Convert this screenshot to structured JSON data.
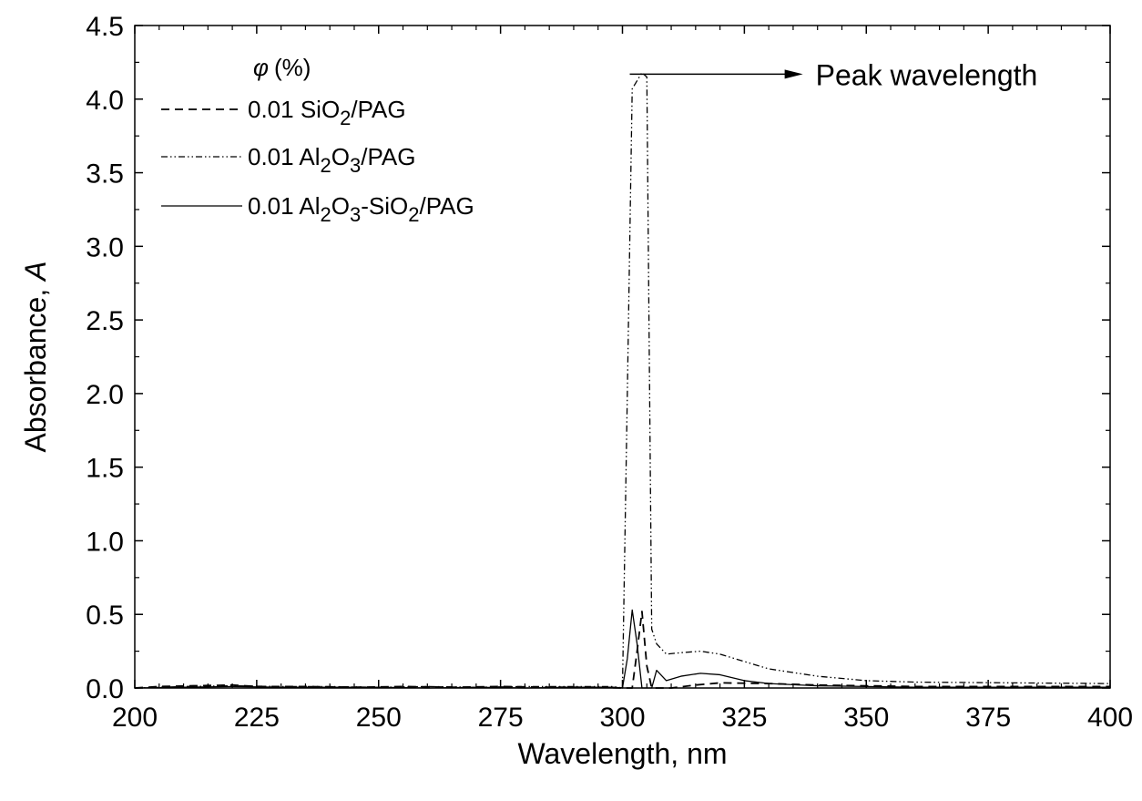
{
  "chart_data": {
    "type": "line",
    "xlabel": "Wavelength, nm",
    "ylabel_text": "Absorbance, ",
    "ylabel_var": "A",
    "xlim": [
      200,
      400
    ],
    "ylim": [
      0,
      4.5
    ],
    "x_ticks": [
      200,
      225,
      250,
      275,
      300,
      325,
      350,
      375,
      400
    ],
    "x_tick_labels": [
      "200",
      "225",
      "250",
      "275",
      "300",
      "325",
      "350",
      "375",
      "400"
    ],
    "y_ticks": [
      0,
      0.5,
      1,
      1.5,
      2,
      2.5,
      3,
      3.5,
      4,
      4.5
    ],
    "y_tick_labels": [
      "0.0",
      "0.5",
      "1.0",
      "1.5",
      "2.0",
      "2.5",
      "3.0",
      "3.5",
      "4.0",
      "4.5"
    ],
    "grid": false,
    "legend": {
      "title_symbol": "φ",
      "title_unit": "(%)",
      "placement": "top-left"
    },
    "series": [
      {
        "name_parts": [
          "0.01 SiO",
          "2",
          "/PAG"
        ],
        "style": "dashed",
        "x": [
          200,
          205,
          212,
          220,
          225,
          235,
          245,
          255,
          265,
          275,
          285,
          295,
          300,
          302,
          303,
          304,
          305,
          306,
          308,
          310,
          315,
          320,
          330,
          340,
          360,
          400
        ],
        "y": [
          0.0,
          0.01,
          0.015,
          0.02,
          0.01,
          0.01,
          0.005,
          0.01,
          0.005,
          0.01,
          0.005,
          0.005,
          0.0,
          0.0,
          0.25,
          0.52,
          0.15,
          0.0,
          0.0,
          0.0,
          0.02,
          0.035,
          0.03,
          0.02,
          0.01,
          0.01
        ]
      },
      {
        "name_parts": [
          "0.01 Al",
          "2",
          "O",
          "3",
          "/PAG"
        ],
        "style": "dash-dot",
        "x": [
          200,
          210,
          220,
          230,
          240,
          250,
          260,
          270,
          280,
          290,
          295,
          298,
          300,
          301,
          302,
          304,
          305,
          306,
          307,
          309,
          312,
          316,
          320,
          325,
          330,
          340,
          350,
          360,
          380,
          400
        ],
        "y": [
          0.0,
          0.01,
          0.015,
          0.01,
          0.01,
          0.005,
          0.01,
          0.005,
          0.01,
          0.01,
          0.01,
          0.01,
          0.0,
          2.0,
          4.07,
          4.18,
          4.15,
          0.4,
          0.3,
          0.23,
          0.24,
          0.25,
          0.23,
          0.18,
          0.13,
          0.08,
          0.05,
          0.04,
          0.035,
          0.03
        ]
      },
      {
        "name_parts": [
          "0.01 Al",
          "2",
          "O",
          "3",
          "-SiO",
          "2",
          "/PAG"
        ],
        "style": "solid",
        "x": [
          200,
          210,
          220,
          230,
          240,
          250,
          260,
          270,
          280,
          290,
          298,
          300,
          301,
          302,
          303,
          304,
          305,
          306,
          307,
          309,
          312,
          316,
          320,
          325,
          330,
          340,
          350,
          360,
          380,
          400
        ],
        "y": [
          0.0,
          0.005,
          0.01,
          0.005,
          0.005,
          0.005,
          0.0,
          0.005,
          0.0,
          0.005,
          0.005,
          0.0,
          0.2,
          0.53,
          0.3,
          0.0,
          0.0,
          0.0,
          0.12,
          0.05,
          0.08,
          0.1,
          0.09,
          0.05,
          0.03,
          0.015,
          0.01,
          0.005,
          0.005,
          0.005
        ]
      }
    ],
    "annotation": {
      "text": "Peak wavelength",
      "from": [
        301.5,
        4.17
      ],
      "to": [
        337,
        4.17
      ]
    }
  }
}
